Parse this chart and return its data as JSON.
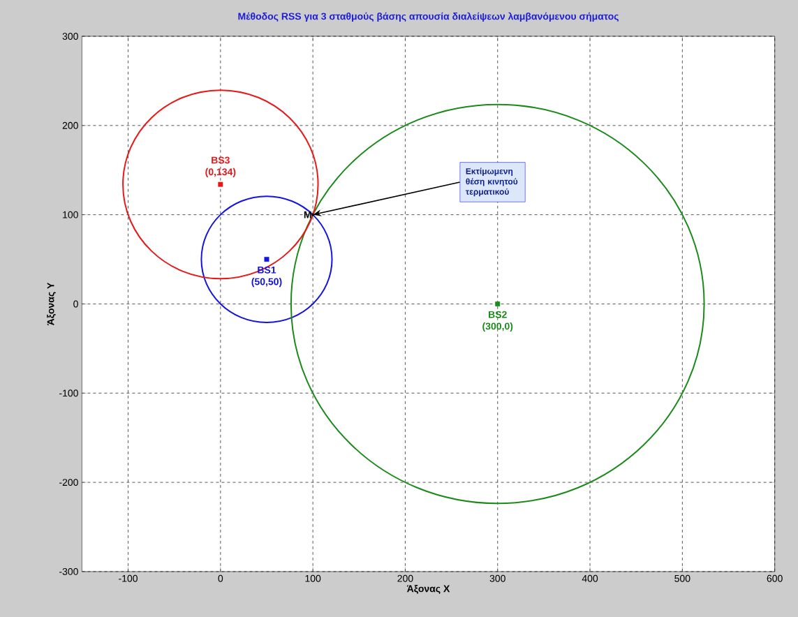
{
  "chart_data": {
    "type": "scatter",
    "title": "Μέθοδος RSS για 3 σταθμούς βάσης απουσία διαλείψεων λαμβανόμενου σήματος",
    "xlabel": "Άξονας X",
    "ylabel": "Άξονας Y",
    "xlim": [
      -150,
      600
    ],
    "ylim": [
      -300,
      300
    ],
    "xticks": [
      -100,
      0,
      100,
      200,
      300,
      400,
      500,
      600
    ],
    "yticks": [
      -300,
      -200,
      -100,
      0,
      100,
      200,
      300
    ],
    "grid": true,
    "marker": "square",
    "series": [
      {
        "name": "BS1",
        "color": "#1414e0",
        "x": [
          50
        ],
        "values": [
          50
        ]
      },
      {
        "name": "BS2",
        "color": "#1a8a1a",
        "x": [
          300
        ],
        "values": [
          0
        ]
      },
      {
        "name": "BS3",
        "color": "#e81818",
        "x": [
          0
        ],
        "values": [
          134
        ]
      },
      {
        "name": "M",
        "color": "#000000",
        "marker": "circle",
        "x": [
          100
        ],
        "values": [
          100
        ]
      }
    ],
    "annotations": [
      {
        "text": "(50,50)",
        "x": 50,
        "y": 50
      },
      {
        "text": "(300,0)",
        "x": 300,
        "y": 0
      },
      {
        "text": "(0,134)",
        "x": 0,
        "y": 134
      },
      {
        "text": "Εκτίμωμενη θέση κινητού τερματικού",
        "x": 100,
        "y": 100
      }
    ]
  }
}
